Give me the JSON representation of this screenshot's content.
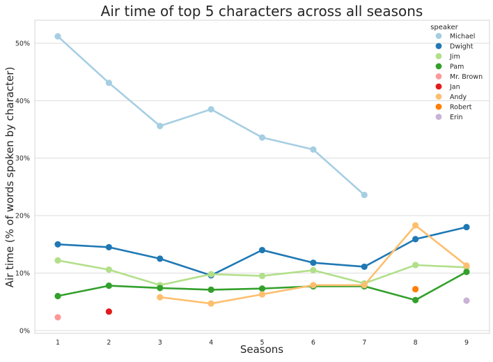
{
  "chart_data": {
    "type": "line",
    "title": "Air time of top 5 characters across all seasons",
    "xlabel": "Seasons",
    "ylabel": "Air time (% of words spoken by character)",
    "x": [
      1,
      2,
      3,
      4,
      5,
      6,
      7,
      8,
      9
    ],
    "x_tick_labels": [
      "1",
      "2",
      "3",
      "4",
      "5",
      "6",
      "7",
      "8",
      "9"
    ],
    "ylim": [
      -0.5,
      54
    ],
    "y_ticks": [
      0,
      10,
      20,
      30,
      40,
      50
    ],
    "y_tick_labels": [
      "0%",
      "10%",
      "20%",
      "30%",
      "40%",
      "50%"
    ],
    "grid": true,
    "legend": {
      "title": "speaker",
      "placement": "top-right"
    },
    "series": [
      {
        "name": "Michael",
        "color": "#a6cee3",
        "points": [
          [
            1,
            51.2
          ],
          [
            2,
            43.1
          ],
          [
            3,
            35.6
          ],
          [
            4,
            38.5
          ],
          [
            5,
            33.6
          ],
          [
            6,
            31.5
          ],
          [
            7,
            23.6
          ]
        ]
      },
      {
        "name": "Dwight",
        "color": "#1f78b4",
        "points": [
          [
            1,
            15.0
          ],
          [
            2,
            14.5
          ],
          [
            3,
            12.5
          ],
          [
            4,
            9.6
          ],
          [
            5,
            14.0
          ],
          [
            6,
            11.8
          ],
          [
            7,
            11.1
          ],
          [
            8,
            15.9
          ],
          [
            9,
            18.0
          ]
        ]
      },
      {
        "name": "Jim",
        "color": "#b2df8a",
        "points": [
          [
            1,
            12.2
          ],
          [
            2,
            10.6
          ],
          [
            3,
            7.9
          ],
          [
            4,
            9.8
          ],
          [
            5,
            9.5
          ],
          [
            6,
            10.5
          ],
          [
            7,
            8.2
          ],
          [
            8,
            11.4
          ],
          [
            9,
            11.0
          ]
        ]
      },
      {
        "name": "Pam",
        "color": "#33a02c",
        "points": [
          [
            1,
            6.0
          ],
          [
            2,
            7.8
          ],
          [
            3,
            7.4
          ],
          [
            4,
            7.1
          ],
          [
            5,
            7.3
          ],
          [
            6,
            7.7
          ],
          [
            7,
            7.7
          ],
          [
            8,
            5.3
          ],
          [
            9,
            10.2
          ]
        ]
      },
      {
        "name": "Mr. Brown",
        "color": "#fb9a99",
        "points": [
          [
            1,
            2.3
          ]
        ]
      },
      {
        "name": "Jan",
        "color": "#e31a1c",
        "points": [
          [
            2,
            3.3
          ]
        ]
      },
      {
        "name": "Andy",
        "color": "#fdbf6f",
        "points": [
          [
            3,
            5.8
          ],
          [
            4,
            4.7
          ],
          [
            5,
            6.3
          ],
          [
            6,
            7.9
          ],
          [
            7,
            7.9
          ],
          [
            8,
            18.3
          ],
          [
            9,
            11.3
          ]
        ]
      },
      {
        "name": "Robert",
        "color": "#ff7f00",
        "points": [
          [
            8,
            7.2
          ]
        ]
      },
      {
        "name": "Erin",
        "color": "#cab2d6",
        "points": [
          [
            9,
            5.2
          ]
        ]
      }
    ]
  }
}
